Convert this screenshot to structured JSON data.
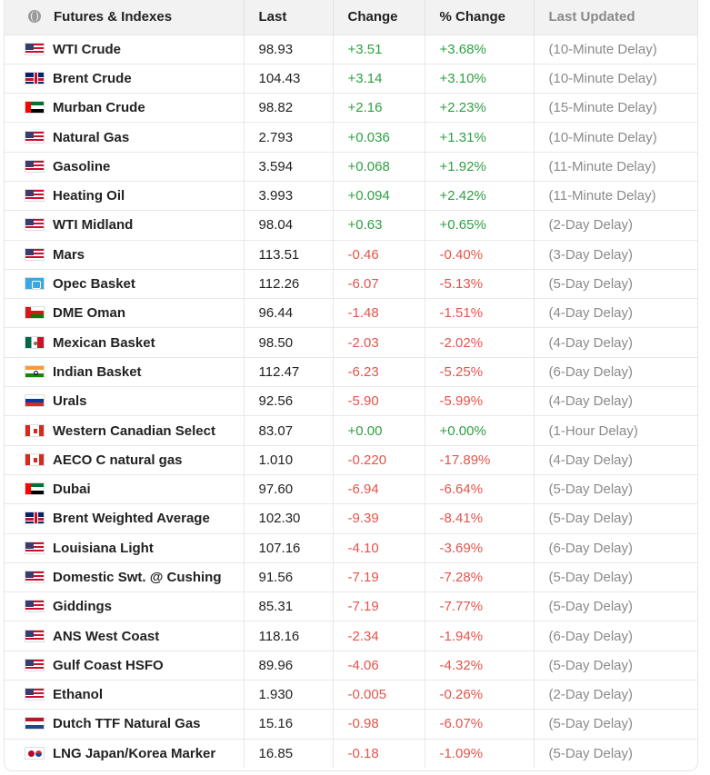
{
  "header": {
    "col_name": "Futures & Indexes",
    "col_last": "Last",
    "col_change": "Change",
    "col_pct": "% Change",
    "col_updated": "Last Updated"
  },
  "colors": {
    "positive": "#2ea043",
    "negative": "#e5534b",
    "muted": "#8a8a8a"
  },
  "rows": [
    {
      "flag": "us-flag",
      "name": "WTI Crude",
      "last": "98.93",
      "change": "+3.51",
      "pct": "+3.68%",
      "updated": "(10-Minute Delay)",
      "dir": "pos"
    },
    {
      "flag": "uk-flag",
      "name": "Brent Crude",
      "last": "104.43",
      "change": "+3.14",
      "pct": "+3.10%",
      "updated": "(10-Minute Delay)",
      "dir": "pos"
    },
    {
      "flag": "uae-flag",
      "name": "Murban Crude",
      "last": "98.82",
      "change": "+2.16",
      "pct": "+2.23%",
      "updated": "(15-Minute Delay)",
      "dir": "pos"
    },
    {
      "flag": "us-flag",
      "name": "Natural Gas",
      "last": "2.793",
      "change": "+0.036",
      "pct": "+1.31%",
      "updated": "(10-Minute Delay)",
      "dir": "pos"
    },
    {
      "flag": "us-flag",
      "name": "Gasoline",
      "last": "3.594",
      "change": "+0.068",
      "pct": "+1.92%",
      "updated": "(11-Minute Delay)",
      "dir": "pos"
    },
    {
      "flag": "us-flag",
      "name": "Heating Oil",
      "last": "3.993",
      "change": "+0.094",
      "pct": "+2.42%",
      "updated": "(11-Minute Delay)",
      "dir": "pos"
    },
    {
      "flag": "us-flag",
      "name": "WTI Midland",
      "last": "98.04",
      "change": "+0.63",
      "pct": "+0.65%",
      "updated": "(2-Day Delay)",
      "dir": "pos"
    },
    {
      "flag": "us-flag",
      "name": "Mars",
      "last": "113.51",
      "change": "-0.46",
      "pct": "-0.40%",
      "updated": "(3-Day Delay)",
      "dir": "neg"
    },
    {
      "flag": "opec-flag",
      "name": "Opec Basket",
      "last": "112.26",
      "change": "-6.07",
      "pct": "-5.13%",
      "updated": "(5-Day Delay)",
      "dir": "neg"
    },
    {
      "flag": "oman-flag",
      "name": "DME Oman",
      "last": "96.44",
      "change": "-1.48",
      "pct": "-1.51%",
      "updated": "(4-Day Delay)",
      "dir": "neg"
    },
    {
      "flag": "mexico-flag",
      "name": "Mexican Basket",
      "last": "98.50",
      "change": "-2.03",
      "pct": "-2.02%",
      "updated": "(4-Day Delay)",
      "dir": "neg"
    },
    {
      "flag": "india-flag",
      "name": "Indian Basket",
      "last": "112.47",
      "change": "-6.23",
      "pct": "-5.25%",
      "updated": "(6-Day Delay)",
      "dir": "neg"
    },
    {
      "flag": "russia-flag",
      "name": "Urals",
      "last": "92.56",
      "change": "-5.90",
      "pct": "-5.99%",
      "updated": "(4-Day Delay)",
      "dir": "neg"
    },
    {
      "flag": "canada-flag",
      "name": "Western Canadian Select",
      "last": "83.07",
      "change": "+0.00",
      "pct": "+0.00%",
      "updated": "(1-Hour Delay)",
      "dir": "pos"
    },
    {
      "flag": "canada-flag",
      "name": "AECO C natural gas",
      "last": "1.010",
      "change": "-0.220",
      "pct": "-17.89%",
      "updated": "(4-Day Delay)",
      "dir": "neg"
    },
    {
      "flag": "uae-flag",
      "name": "Dubai",
      "last": "97.60",
      "change": "-6.94",
      "pct": "-6.64%",
      "updated": "(5-Day Delay)",
      "dir": "neg"
    },
    {
      "flag": "uk-flag",
      "name": "Brent Weighted Average",
      "last": "102.30",
      "change": "-9.39",
      "pct": "-8.41%",
      "updated": "(5-Day Delay)",
      "dir": "neg"
    },
    {
      "flag": "us-flag",
      "name": "Louisiana Light",
      "last": "107.16",
      "change": "-4.10",
      "pct": "-3.69%",
      "updated": "(6-Day Delay)",
      "dir": "neg"
    },
    {
      "flag": "us-flag",
      "name": "Domestic Swt. @ Cushing",
      "last": "91.56",
      "change": "-7.19",
      "pct": "-7.28%",
      "updated": "(5-Day Delay)",
      "dir": "neg"
    },
    {
      "flag": "us-flag",
      "name": "Giddings",
      "last": "85.31",
      "change": "-7.19",
      "pct": "-7.77%",
      "updated": "(5-Day Delay)",
      "dir": "neg"
    },
    {
      "flag": "us-flag",
      "name": "ANS West Coast",
      "last": "118.16",
      "change": "-2.34",
      "pct": "-1.94%",
      "updated": "(6-Day Delay)",
      "dir": "neg"
    },
    {
      "flag": "us-flag",
      "name": "Gulf Coast HSFO",
      "last": "89.96",
      "change": "-4.06",
      "pct": "-4.32%",
      "updated": "(5-Day Delay)",
      "dir": "neg"
    },
    {
      "flag": "us-flag",
      "name": "Ethanol",
      "last": "1.930",
      "change": "-0.005",
      "pct": "-0.26%",
      "updated": "(2-Day Delay)",
      "dir": "neg"
    },
    {
      "flag": "netherlands-flag",
      "name": "Dutch TTF Natural Gas",
      "last": "15.16",
      "change": "-0.98",
      "pct": "-6.07%",
      "updated": "(5-Day Delay)",
      "dir": "neg"
    },
    {
      "flag": "japan-korea-flag",
      "name": "LNG Japan/Korea Marker",
      "last": "16.85",
      "change": "-0.18",
      "pct": "-1.09%",
      "updated": "(5-Day Delay)",
      "dir": "neg"
    }
  ]
}
